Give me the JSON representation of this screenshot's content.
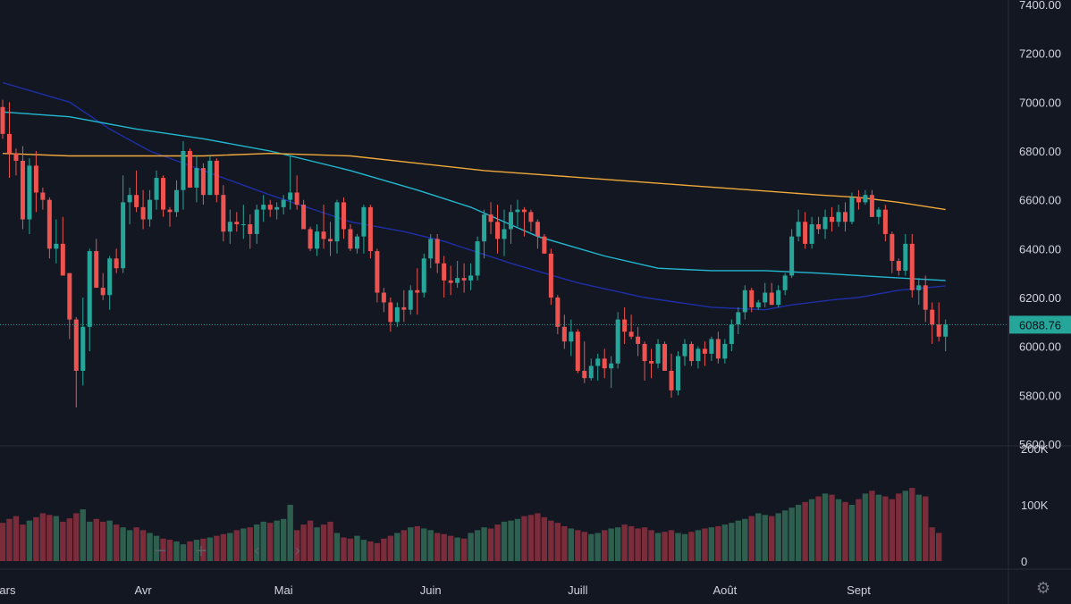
{
  "colors": {
    "background": "#131722",
    "up": "#26a69a",
    "down": "#ef5350",
    "ma_cyan": "#22b8cf",
    "ma_orange": "#f0a93a",
    "ma_navy": "#1e2fa8",
    "vol_up": "#2e5e4e",
    "vol_down": "#7a2c3a",
    "grid_line": "#2a2e39",
    "last_price_line": "#26a69a"
  },
  "controls": {
    "zoom_out": "−",
    "zoom_in": "+",
    "scroll_left": "‹",
    "scroll_right": "›",
    "settings_icon": "⚙"
  },
  "chart_data": {
    "type": "candlestick",
    "grid": false,
    "price_axis": {
      "ylim": [
        5600,
        7400
      ],
      "tick_values": [
        5600,
        5800,
        6000,
        6200,
        6400,
        6600,
        6800,
        7000,
        7200,
        7400
      ],
      "tick_labels": [
        "5600.00",
        "5800.00",
        "6000.00",
        "6200.00",
        "6400.00",
        "6600.00",
        "6800.00",
        "7000.00",
        "7200.00",
        "7400.00"
      ]
    },
    "volume_axis": {
      "ylim": [
        0,
        200000
      ],
      "tick_values": [
        0,
        100000,
        200000
      ],
      "tick_labels": [
        "0",
        "100K",
        "200K"
      ]
    },
    "x_axis": {
      "labels": [
        "Mars",
        "Avr",
        "Mai",
        "Juin",
        "Juill",
        "Août",
        "Sept"
      ],
      "label_positions": [
        0,
        21,
        42,
        64,
        86,
        108,
        128
      ]
    },
    "last_price": 6088.76,
    "last_price_label": "6088.76",
    "candles": [
      [
        6980,
        7010,
        6850,
        6870
      ],
      [
        6870,
        7000,
        6690,
        6790
      ],
      [
        6790,
        6810,
        6700,
        6760
      ],
      [
        6760,
        6820,
        6480,
        6520
      ],
      [
        6520,
        6770,
        6460,
        6740
      ],
      [
        6740,
        6800,
        6550,
        6630
      ],
      [
        6630,
        6650,
        6560,
        6600
      ],
      [
        6600,
        6610,
        6360,
        6400
      ],
      [
        6400,
        6520,
        6340,
        6420
      ],
      [
        6420,
        6530,
        6300,
        6290
      ],
      [
        6300,
        6300,
        6030,
        6110
      ],
      [
        6110,
        6120,
        5750,
        5900
      ],
      [
        5900,
        6200,
        5840,
        6080
      ],
      [
        6080,
        6400,
        5980,
        6390
      ],
      [
        6390,
        6440,
        6250,
        6240
      ],
      [
        6240,
        6300,
        6190,
        6210
      ],
      [
        6210,
        6370,
        6150,
        6360
      ],
      [
        6360,
        6400,
        6300,
        6320
      ],
      [
        6320,
        6700,
        6300,
        6590
      ],
      [
        6590,
        6650,
        6500,
        6620
      ],
      [
        6620,
        6720,
        6550,
        6570
      ],
      [
        6570,
        6640,
        6480,
        6520
      ],
      [
        6520,
        6640,
        6490,
        6600
      ],
      [
        6600,
        6720,
        6560,
        6690
      ],
      [
        6690,
        6700,
        6530,
        6560
      ],
      [
        6560,
        6570,
        6490,
        6550
      ],
      [
        6550,
        6680,
        6530,
        6640
      ],
      [
        6640,
        6840,
        6560,
        6800
      ],
      [
        6800,
        6810,
        6650,
        6650
      ],
      [
        6650,
        6780,
        6590,
        6730
      ],
      [
        6730,
        6750,
        6580,
        6620
      ],
      [
        6620,
        6780,
        6620,
        6760
      ],
      [
        6760,
        6770,
        6590,
        6620
      ],
      [
        6620,
        6660,
        6430,
        6470
      ],
      [
        6470,
        6560,
        6420,
        6510
      ],
      [
        6510,
        6550,
        6470,
        6500
      ],
      [
        6500,
        6580,
        6440,
        6500
      ],
      [
        6500,
        6540,
        6400,
        6460
      ],
      [
        6460,
        6580,
        6420,
        6560
      ],
      [
        6560,
        6620,
        6510,
        6580
      ],
      [
        6580,
        6600,
        6530,
        6560
      ],
      [
        6560,
        6590,
        6520,
        6570
      ],
      [
        6570,
        6620,
        6540,
        6600
      ],
      [
        6600,
        6780,
        6560,
        6630
      ],
      [
        6630,
        6700,
        6560,
        6580
      ],
      [
        6580,
        6600,
        6490,
        6480
      ],
      [
        6480,
        6490,
        6390,
        6400
      ],
      [
        6400,
        6500,
        6370,
        6470
      ],
      [
        6470,
        6580,
        6400,
        6440
      ],
      [
        6440,
        6510,
        6370,
        6430
      ],
      [
        6430,
        6600,
        6380,
        6590
      ],
      [
        6590,
        6610,
        6440,
        6480
      ],
      [
        6480,
        6500,
        6390,
        6400
      ],
      [
        6400,
        6460,
        6380,
        6450
      ],
      [
        6450,
        6580,
        6380,
        6570
      ],
      [
        6570,
        6580,
        6360,
        6390
      ],
      [
        6390,
        6400,
        6180,
        6220
      ],
      [
        6220,
        6240,
        6140,
        6180
      ],
      [
        6180,
        6200,
        6060,
        6100
      ],
      [
        6100,
        6180,
        6080,
        6160
      ],
      [
        6160,
        6230,
        6100,
        6150
      ],
      [
        6150,
        6250,
        6130,
        6230
      ],
      [
        6230,
        6320,
        6130,
        6220
      ],
      [
        6220,
        6380,
        6200,
        6360
      ],
      [
        6360,
        6460,
        6320,
        6440
      ],
      [
        6440,
        6460,
        6300,
        6340
      ],
      [
        6340,
        6370,
        6200,
        6270
      ],
      [
        6270,
        6330,
        6210,
        6260
      ],
      [
        6260,
        6350,
        6240,
        6280
      ],
      [
        6280,
        6340,
        6220,
        6270
      ],
      [
        6270,
        6340,
        6230,
        6290
      ],
      [
        6290,
        6450,
        6270,
        6430
      ],
      [
        6430,
        6560,
        6360,
        6540
      ],
      [
        6540,
        6590,
        6460,
        6510
      ],
      [
        6510,
        6580,
        6380,
        6440
      ],
      [
        6440,
        6560,
        6370,
        6480
      ],
      [
        6480,
        6580,
        6420,
        6550
      ],
      [
        6550,
        6600,
        6490,
        6560
      ],
      [
        6560,
        6570,
        6450,
        6550
      ],
      [
        6550,
        6560,
        6470,
        6510
      ],
      [
        6510,
        6520,
        6400,
        6450
      ],
      [
        6450,
        6460,
        6380,
        6380
      ],
      [
        6380,
        6400,
        6170,
        6200
      ],
      [
        6200,
        6210,
        6050,
        6080
      ],
      [
        6080,
        6130,
        5990,
        6020
      ],
      [
        6020,
        6110,
        5960,
        6060
      ],
      [
        6060,
        6070,
        5890,
        5900
      ],
      [
        5900,
        6020,
        5850,
        5870
      ],
      [
        5870,
        5950,
        5860,
        5920
      ],
      [
        5920,
        5970,
        5860,
        5950
      ],
      [
        5950,
        5990,
        5870,
        5910
      ],
      [
        5910,
        5960,
        5830,
        5930
      ],
      [
        5930,
        6140,
        5910,
        6110
      ],
      [
        6110,
        6160,
        6010,
        6060
      ],
      [
        6060,
        6130,
        6030,
        6040
      ],
      [
        6040,
        6080,
        5960,
        6010
      ],
      [
        6010,
        6020,
        5860,
        5940
      ],
      [
        5940,
        5990,
        5870,
        5930
      ],
      [
        5930,
        6030,
        5910,
        6010
      ],
      [
        6010,
        6020,
        5900,
        5900
      ],
      [
        5900,
        5970,
        5790,
        5820
      ],
      [
        5820,
        5980,
        5800,
        5960
      ],
      [
        5960,
        6030,
        5920,
        6010
      ],
      [
        6010,
        6020,
        5920,
        5940
      ],
      [
        5940,
        6000,
        5910,
        5990
      ],
      [
        5990,
        6020,
        5920,
        5970
      ],
      [
        5970,
        6040,
        5940,
        6030
      ],
      [
        6030,
        6060,
        5930,
        5950
      ],
      [
        5950,
        6030,
        5930,
        6010
      ],
      [
        6010,
        6110,
        5980,
        6090
      ],
      [
        6090,
        6160,
        6050,
        6140
      ],
      [
        6140,
        6250,
        6110,
        6230
      ],
      [
        6230,
        6240,
        6140,
        6160
      ],
      [
        6160,
        6190,
        6150,
        6180
      ],
      [
        6180,
        6260,
        6160,
        6220
      ],
      [
        6220,
        6260,
        6170,
        6170
      ],
      [
        6170,
        6250,
        6160,
        6230
      ],
      [
        6230,
        6300,
        6210,
        6290
      ],
      [
        6290,
        6480,
        6280,
        6450
      ],
      [
        6450,
        6560,
        6430,
        6510
      ],
      [
        6510,
        6550,
        6400,
        6420
      ],
      [
        6420,
        6530,
        6400,
        6500
      ],
      [
        6500,
        6530,
        6460,
        6480
      ],
      [
        6480,
        6560,
        6440,
        6530
      ],
      [
        6530,
        6570,
        6470,
        6510
      ],
      [
        6510,
        6580,
        6490,
        6550
      ],
      [
        6550,
        6590,
        6470,
        6510
      ],
      [
        6510,
        6630,
        6500,
        6610
      ],
      [
        6610,
        6640,
        6560,
        6590
      ],
      [
        6590,
        6640,
        6580,
        6620
      ],
      [
        6620,
        6640,
        6530,
        6530
      ],
      [
        6530,
        6570,
        6500,
        6560
      ],
      [
        6560,
        6580,
        6430,
        6460
      ],
      [
        6460,
        6470,
        6300,
        6350
      ],
      [
        6350,
        6360,
        6290,
        6310
      ],
      [
        6310,
        6460,
        6290,
        6420
      ],
      [
        6420,
        6460,
        6200,
        6230
      ],
      [
        6230,
        6280,
        6170,
        6250
      ],
      [
        6250,
        6290,
        6100,
        6150
      ],
      [
        6150,
        6180,
        6010,
        6090
      ],
      [
        6090,
        6180,
        6020,
        6040
      ],
      [
        6040,
        6110,
        5980,
        6090
      ]
    ],
    "volumes": [
      68000,
      75000,
      80000,
      65000,
      72000,
      78000,
      85000,
      82000,
      80000,
      70000,
      76000,
      85000,
      92000,
      70000,
      75000,
      70000,
      72000,
      65000,
      60000,
      55000,
      60000,
      55000,
      50000,
      45000,
      40000,
      38000,
      35000,
      30000,
      35000,
      38000,
      40000,
      42000,
      45000,
      48000,
      50000,
      55000,
      58000,
      60000,
      65000,
      70000,
      68000,
      72000,
      75000,
      100000,
      55000,
      65000,
      72000,
      60000,
      65000,
      70000,
      50000,
      42000,
      40000,
      45000,
      38000,
      35000,
      32000,
      40000,
      45000,
      50000,
      55000,
      60000,
      62000,
      58000,
      55000,
      50000,
      48000,
      45000,
      42000,
      40000,
      50000,
      55000,
      60000,
      58000,
      65000,
      70000,
      72000,
      75000,
      80000,
      82000,
      85000,
      78000,
      72000,
      68000,
      62000,
      58000,
      55000,
      52000,
      48000,
      50000,
      55000,
      58000,
      60000,
      65000,
      62000,
      58000,
      60000,
      55000,
      50000,
      52000,
      55000,
      50000,
      48000,
      52000,
      55000,
      58000,
      60000,
      62000,
      65000,
      68000,
      72000,
      75000,
      80000,
      85000,
      82000,
      80000,
      85000,
      90000,
      95000,
      100000,
      105000,
      110000,
      115000,
      120000,
      118000,
      110000,
      105000,
      100000,
      110000,
      120000,
      125000,
      118000,
      115000,
      110000,
      120000,
      125000,
      130000,
      118000,
      115000,
      60000,
      50000
    ],
    "moving_averages": [
      {
        "color_key": "ma_navy",
        "points": [
          [
            0,
            7080
          ],
          [
            10,
            7000
          ],
          [
            16,
            6890
          ],
          [
            22,
            6800
          ],
          [
            30,
            6720
          ],
          [
            40,
            6620
          ],
          [
            52,
            6510
          ],
          [
            60,
            6470
          ],
          [
            66,
            6430
          ],
          [
            76,
            6340
          ],
          [
            86,
            6260
          ],
          [
            96,
            6200
          ],
          [
            106,
            6160
          ],
          [
            114,
            6150
          ],
          [
            118,
            6170
          ],
          [
            124,
            6190
          ],
          [
            128,
            6200
          ],
          [
            134,
            6230
          ],
          [
            138,
            6240
          ],
          [
            141,
            6248
          ]
        ]
      },
      {
        "color_key": "ma_cyan",
        "points": [
          [
            0,
            6960
          ],
          [
            10,
            6940
          ],
          [
            20,
            6890
          ],
          [
            30,
            6850
          ],
          [
            40,
            6800
          ],
          [
            52,
            6720
          ],
          [
            62,
            6640
          ],
          [
            70,
            6570
          ],
          [
            80,
            6450
          ],
          [
            90,
            6370
          ],
          [
            98,
            6320
          ],
          [
            106,
            6310
          ],
          [
            114,
            6310
          ],
          [
            122,
            6300
          ],
          [
            128,
            6290
          ],
          [
            134,
            6280
          ],
          [
            141,
            6270
          ]
        ]
      },
      {
        "color_key": "ma_orange",
        "points": [
          [
            0,
            6790
          ],
          [
            10,
            6780
          ],
          [
            20,
            6780
          ],
          [
            30,
            6780
          ],
          [
            40,
            6790
          ],
          [
            52,
            6780
          ],
          [
            62,
            6750
          ],
          [
            72,
            6720
          ],
          [
            82,
            6700
          ],
          [
            92,
            6680
          ],
          [
            102,
            6660
          ],
          [
            112,
            6640
          ],
          [
            122,
            6620
          ],
          [
            128,
            6610
          ],
          [
            134,
            6590
          ],
          [
            141,
            6560
          ]
        ]
      }
    ]
  }
}
